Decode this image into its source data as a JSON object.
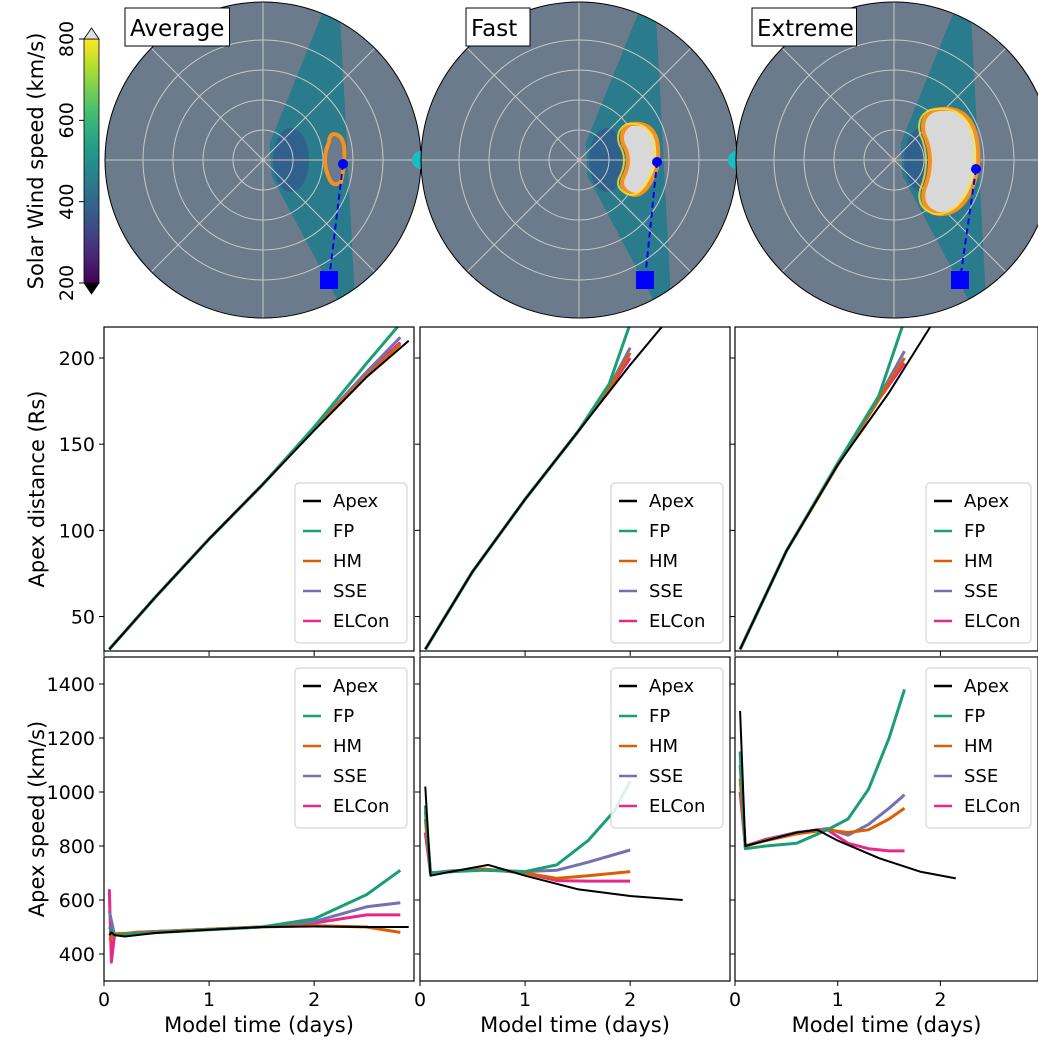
{
  "colorbar": {
    "label": "Solar Wind speed (km/s)",
    "ticks": [
      200,
      400,
      600,
      800
    ],
    "range": [
      200,
      800
    ],
    "colormap": "viridis"
  },
  "polar_panels": [
    {
      "title": "Average",
      "background_speed": 400,
      "stream_speed": 470,
      "cme_speed": 600
    },
    {
      "title": "Fast",
      "background_speed": 400,
      "stream_speed": 470,
      "cme_speed": 800
    },
    {
      "title": "Extreme",
      "background_speed": 400,
      "stream_speed": 470,
      "cme_speed": 800
    }
  ],
  "legend_labels": [
    "Apex",
    "FP",
    "HM",
    "SSE",
    "ELCon"
  ],
  "series_colors": {
    "Apex": "#000000",
    "FP": "#1b9e77",
    "HM": "#d95f02",
    "SSE": "#7570b3",
    "ELCon": "#e7298a"
  },
  "chart_data": [
    {
      "type": "line",
      "panel": "Average",
      "xlabel": "",
      "ylabel": "Apex distance (Rs)",
      "xlim": [
        0,
        2.95
      ],
      "ylim": [
        30,
        218
      ],
      "yticks": [
        50,
        100,
        150,
        200
      ],
      "series": [
        {
          "name": "Apex",
          "x": [
            0.05,
            0.5,
            1.0,
            1.5,
            2.0,
            2.5,
            2.9
          ],
          "y": [
            31,
            62,
            95,
            126,
            158,
            189,
            210
          ]
        },
        {
          "name": "FP",
          "x": [
            0.05,
            0.5,
            1.0,
            1.5,
            2.0,
            2.5,
            2.82
          ],
          "y": [
            31,
            62,
            95,
            126,
            160,
            197,
            220
          ]
        },
        {
          "name": "HM",
          "x": [
            0.05,
            0.5,
            1.0,
            1.5,
            2.0,
            2.5,
            2.82
          ],
          "y": [
            31,
            62,
            95,
            126,
            159,
            190,
            208
          ]
        },
        {
          "name": "SSE",
          "x": [
            0.05,
            0.5,
            1.0,
            1.5,
            2.0,
            2.5,
            2.82
          ],
          "y": [
            31,
            62,
            95,
            126,
            159,
            192,
            212
          ]
        },
        {
          "name": "ELCon",
          "x": [
            0.05,
            0.5,
            1.0,
            1.5,
            2.0,
            2.5,
            2.82
          ],
          "y": [
            31,
            62,
            95,
            126,
            159,
            191,
            209
          ]
        }
      ]
    },
    {
      "type": "line",
      "panel": "Fast",
      "xlabel": "",
      "ylabel": "",
      "xlim": [
        0,
        2.95
      ],
      "ylim": [
        30,
        218
      ],
      "yticks": [
        50,
        100,
        150,
        200
      ],
      "series": [
        {
          "name": "Apex",
          "x": [
            0.05,
            0.5,
            1.0,
            1.5,
            2.0,
            2.3
          ],
          "y": [
            31,
            76,
            118,
            157,
            196,
            218
          ]
        },
        {
          "name": "FP",
          "x": [
            0.05,
            0.5,
            1.0,
            1.5,
            1.8,
            2.0
          ],
          "y": [
            31,
            76,
            118,
            157,
            185,
            220
          ]
        },
        {
          "name": "HM",
          "x": [
            0.05,
            0.5,
            1.0,
            1.5,
            1.8,
            2.0
          ],
          "y": [
            31,
            76,
            118,
            157,
            182,
            203
          ]
        },
        {
          "name": "SSE",
          "x": [
            0.05,
            0.5,
            1.0,
            1.5,
            1.8,
            2.0
          ],
          "y": [
            31,
            76,
            118,
            157,
            183,
            206
          ]
        },
        {
          "name": "ELCon",
          "x": [
            0.05,
            0.5,
            1.0,
            1.5,
            1.8,
            2.0
          ],
          "y": [
            31,
            76,
            118,
            157,
            182,
            200
          ]
        }
      ]
    },
    {
      "type": "line",
      "panel": "Extreme",
      "xlabel": "",
      "ylabel": "",
      "xlim": [
        0,
        2.95
      ],
      "ylim": [
        30,
        218
      ],
      "yticks": [
        50,
        100,
        150,
        200
      ],
      "series": [
        {
          "name": "Apex",
          "x": [
            0.05,
            0.5,
            1.0,
            1.5,
            1.9
          ],
          "y": [
            31,
            88,
            138,
            180,
            218
          ]
        },
        {
          "name": "FP",
          "x": [
            0.05,
            0.5,
            1.0,
            1.4,
            1.65
          ],
          "y": [
            31,
            88,
            139,
            178,
            222
          ]
        },
        {
          "name": "HM",
          "x": [
            0.05,
            0.5,
            1.0,
            1.4,
            1.65
          ],
          "y": [
            31,
            88,
            138,
            176,
            200
          ]
        },
        {
          "name": "SSE",
          "x": [
            0.05,
            0.5,
            1.0,
            1.4,
            1.65
          ],
          "y": [
            31,
            88,
            138,
            177,
            204
          ]
        },
        {
          "name": "ELCon",
          "x": [
            0.05,
            0.5,
            1.0,
            1.4,
            1.65
          ],
          "y": [
            31,
            88,
            138,
            176,
            197
          ]
        }
      ]
    },
    {
      "type": "line",
      "panel": "Average",
      "xlabel": "Model time (days)",
      "ylabel": "Apex speed (km/s)",
      "xlim": [
        0,
        2.95
      ],
      "ylim": [
        300,
        1500
      ],
      "yticks": [
        400,
        600,
        800,
        1000,
        1200,
        1400
      ],
      "xticks": [
        0,
        1,
        2
      ],
      "series": [
        {
          "name": "Apex",
          "x": [
            0.05,
            0.07,
            0.1,
            0.2,
            0.5,
            1.0,
            1.5,
            2.0,
            2.5,
            2.9
          ],
          "y": [
            470,
            480,
            470,
            465,
            478,
            490,
            500,
            502,
            500,
            500
          ]
        },
        {
          "name": "FP",
          "x": [
            0.05,
            0.1,
            0.3,
            1.0,
            1.5,
            2.0,
            2.5,
            2.82
          ],
          "y": [
            500,
            470,
            475,
            490,
            500,
            530,
            620,
            710
          ]
        },
        {
          "name": "HM",
          "x": [
            0.05,
            0.1,
            0.3,
            1.0,
            1.5,
            2.0,
            2.5,
            2.82
          ],
          "y": [
            450,
            475,
            478,
            492,
            500,
            505,
            500,
            480
          ]
        },
        {
          "name": "SSE",
          "x": [
            0.05,
            0.1,
            0.3,
            1.0,
            1.5,
            2.0,
            2.5,
            2.82
          ],
          "y": [
            560,
            470,
            480,
            492,
            500,
            520,
            575,
            590
          ]
        },
        {
          "name": "ELCon",
          "x": [
            0.05,
            0.07,
            0.1,
            0.3,
            1.0,
            1.5,
            2.0,
            2.5,
            2.82
          ],
          "y": [
            640,
            370,
            470,
            480,
            492,
            500,
            515,
            545,
            545
          ]
        }
      ]
    },
    {
      "type": "line",
      "panel": "Fast",
      "xlabel": "Model time (days)",
      "ylabel": "",
      "xlim": [
        0,
        2.95
      ],
      "ylim": [
        300,
        1500
      ],
      "yticks": [
        400,
        600,
        800,
        1000,
        1200,
        1400
      ],
      "xticks": [
        0,
        1,
        2
      ],
      "series": [
        {
          "name": "Apex",
          "x": [
            0.05,
            0.1,
            0.3,
            0.65,
            1.0,
            1.5,
            2.0,
            2.5
          ],
          "y": [
            1020,
            690,
            705,
            730,
            690,
            640,
            615,
            600
          ]
        },
        {
          "name": "FP",
          "x": [
            0.05,
            0.1,
            0.3,
            0.6,
            1.0,
            1.3,
            1.6,
            1.85,
            2.0
          ],
          "y": [
            950,
            700,
            705,
            710,
            705,
            730,
            820,
            930,
            1040
          ]
        },
        {
          "name": "HM",
          "x": [
            0.05,
            0.1,
            0.3,
            0.6,
            1.0,
            1.3,
            1.6,
            2.0
          ],
          "y": [
            900,
            700,
            705,
            715,
            700,
            680,
            690,
            705
          ]
        },
        {
          "name": "SSE",
          "x": [
            0.05,
            0.1,
            0.3,
            0.6,
            1.0,
            1.3,
            1.6,
            2.0
          ],
          "y": [
            930,
            700,
            708,
            712,
            705,
            710,
            740,
            785
          ]
        },
        {
          "name": "ELCon",
          "x": [
            0.05,
            0.1,
            0.3,
            0.6,
            1.0,
            1.3,
            1.6,
            2.0
          ],
          "y": [
            850,
            700,
            705,
            715,
            700,
            672,
            670,
            670
          ]
        }
      ]
    },
    {
      "type": "line",
      "panel": "Extreme",
      "xlabel": "Model time (days)",
      "ylabel": "",
      "xlim": [
        0,
        2.95
      ],
      "ylim": [
        300,
        1500
      ],
      "yticks": [
        400,
        600,
        800,
        1000,
        1200,
        1400
      ],
      "xticks": [
        0,
        1,
        2
      ],
      "series": [
        {
          "name": "Apex",
          "x": [
            0.05,
            0.1,
            0.3,
            0.6,
            0.8,
            1.0,
            1.4,
            1.8,
            2.15
          ],
          "y": [
            1300,
            800,
            820,
            850,
            860,
            820,
            755,
            705,
            680
          ]
        },
        {
          "name": "FP",
          "x": [
            0.05,
            0.1,
            0.3,
            0.6,
            0.9,
            1.1,
            1.3,
            1.5,
            1.65
          ],
          "y": [
            1150,
            790,
            800,
            810,
            860,
            900,
            1010,
            1200,
            1380
          ]
        },
        {
          "name": "HM",
          "x": [
            0.05,
            0.1,
            0.3,
            0.6,
            0.9,
            1.1,
            1.3,
            1.5,
            1.65
          ],
          "y": [
            1050,
            800,
            820,
            845,
            860,
            850,
            860,
            900,
            940
          ]
        },
        {
          "name": "SSE",
          "x": [
            0.05,
            0.1,
            0.3,
            0.6,
            0.9,
            1.1,
            1.3,
            1.5,
            1.65
          ],
          "y": [
            1100,
            800,
            822,
            850,
            865,
            840,
            880,
            940,
            990
          ]
        },
        {
          "name": "ELCon",
          "x": [
            0.05,
            0.1,
            0.3,
            0.6,
            0.9,
            1.1,
            1.3,
            1.5,
            1.65
          ],
          "y": [
            1000,
            800,
            825,
            850,
            860,
            810,
            790,
            782,
            782
          ]
        }
      ]
    }
  ]
}
